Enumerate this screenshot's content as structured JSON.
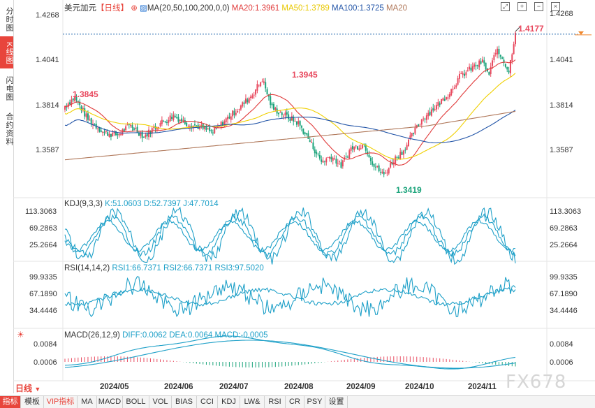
{
  "side_tabs": [
    "分时图",
    "K线图",
    "闪电图",
    "合约资料"
  ],
  "main": {
    "symbol": "美元加元",
    "period_tag": "【日线】",
    "ma_label": "MA(20,50,100,200,0,0)",
    "ma20": "MA20:1.3961",
    "ma50": "MA50:1.3789",
    "ma100": "MA100:1.3725",
    "ma200": "MA20",
    "y_ticks": [
      "1.4268",
      "1.4041",
      "1.3814",
      "1.3587"
    ],
    "annotations": {
      "high1": "1.3845",
      "high2": "1.3945",
      "low": "1.3419",
      "last_high": "1.4177"
    }
  },
  "kdj": {
    "label": "KDJ(9,3,3)",
    "k": "K:51.0603",
    "d": "D:52.7397",
    "j": "J:47.7014",
    "ticks": [
      "113.3063",
      "69.2863",
      "25.2664"
    ]
  },
  "rsi": {
    "label": "RSI(14,14,2)",
    "r1": "RSI1:66.7371",
    "r2": "RSI2:66.7371",
    "r3": "RSI3:97.5020",
    "ticks": [
      "99.9335",
      "67.1890",
      "34.4446"
    ]
  },
  "macd": {
    "label": "MACD(26,12,9)",
    "diff": "DIFF:0.0062",
    "dea": "DEA:0.0064",
    "macd": "MACD:-0.0005",
    "ticks": [
      "0.0084",
      "0.0006"
    ]
  },
  "x_labels": [
    "2024/05",
    "2024/06",
    "2024/07",
    "2024/08",
    "2024/09",
    "2024/10",
    "2024/11"
  ],
  "period_button": "日线",
  "bottom_tabs": [
    "指标",
    "模板",
    "VIP指标",
    "MA",
    "MACD",
    "BOLL",
    "VOL",
    "BIAS",
    "CCI",
    "KDJ",
    "LW&",
    "RSI",
    "CR",
    "PSY",
    "设置"
  ],
  "watermark": "FX678",
  "colors": {
    "up": "#e84a5f",
    "down": "#1aa37a",
    "ma20": "#e03a3a",
    "ma50": "#f0d000",
    "ma100": "#2456a8",
    "ma200": "#b0785a",
    "accent": "#e8453c",
    "indicator": "#1ea0c8"
  }
}
